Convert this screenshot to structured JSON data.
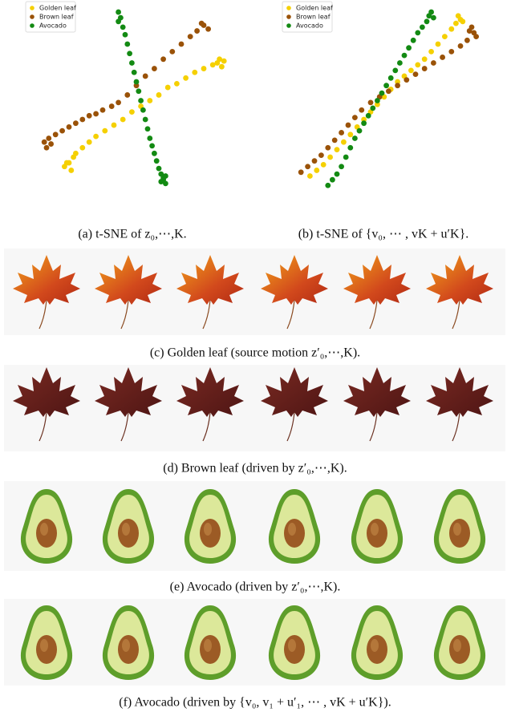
{
  "chart_data": [
    {
      "type": "scatter",
      "xlim": [
        0,
        100
      ],
      "ylim": [
        0,
        100
      ],
      "legend": "upper left",
      "series": [
        {
          "name": "Golden leaf",
          "color": "#f5d000",
          "x": [
            18,
            20,
            22,
            21,
            19,
            23,
            26,
            29,
            32,
            36,
            40,
            44,
            48,
            52,
            56,
            60,
            64,
            68,
            72,
            76,
            80,
            84,
            87,
            89,
            88,
            86
          ],
          "y": [
            15,
            17,
            20,
            13,
            17,
            22,
            25,
            28,
            31,
            34,
            37,
            40,
            44,
            47,
            50,
            53,
            57,
            59,
            62,
            65,
            67,
            69,
            72,
            71,
            68,
            70
          ]
        },
        {
          "name": "Brown leaf",
          "color": "#9a5208",
          "x": [
            9,
            11,
            12,
            10,
            14,
            17,
            20,
            23,
            26,
            29,
            32,
            35,
            39,
            42,
            46,
            50,
            54,
            58,
            62,
            66,
            70,
            74,
            77,
            80,
            82,
            79
          ],
          "y": [
            28,
            30,
            27,
            25,
            32,
            34,
            36,
            38,
            40,
            42,
            43,
            45,
            47,
            49,
            53,
            58,
            63,
            67,
            72,
            76,
            80,
            84,
            87,
            90,
            88,
            91
          ]
        },
        {
          "name": "Avocado",
          "color": "#138a13",
          "x": [
            42,
            43,
            42,
            44,
            45,
            46,
            47,
            48,
            49,
            50,
            51,
            52,
            53,
            54,
            55,
            56,
            57,
            58,
            59,
            60,
            61,
            62,
            63,
            62,
            61,
            63
          ],
          "y": [
            97,
            94,
            92,
            89,
            85,
            80,
            75,
            70,
            65,
            60,
            55,
            50,
            45,
            40,
            35,
            30,
            26,
            22,
            18,
            14,
            11,
            8,
            6,
            9,
            7,
            10
          ]
        }
      ]
    },
    {
      "type": "scatter",
      "xlim": [
        0,
        100
      ],
      "ylim": [
        0,
        100
      ],
      "legend": "upper left",
      "series": [
        {
          "name": "Golden leaf",
          "color": "#f5d000",
          "x": [
            13,
            16,
            19,
            22,
            25,
            28,
            31,
            34,
            37,
            40,
            43,
            46,
            49,
            52,
            55,
            58,
            61,
            64,
            67,
            70,
            73,
            76,
            78,
            80,
            79,
            81
          ],
          "y": [
            10,
            13,
            16,
            20,
            24,
            28,
            32,
            36,
            40,
            44,
            48,
            52,
            56,
            60,
            63,
            66,
            69,
            72,
            76,
            80,
            84,
            88,
            91,
            93,
            95,
            92
          ]
        },
        {
          "name": "Brown leaf",
          "color": "#9a5208",
          "x": [
            9,
            12,
            15,
            18,
            21,
            24,
            27,
            30,
            33,
            36,
            40,
            44,
            48,
            52,
            56,
            60,
            64,
            68,
            72,
            76,
            80,
            83,
            86,
            85,
            84,
            87
          ],
          "y": [
            12,
            15,
            18,
            21,
            25,
            29,
            33,
            37,
            41,
            45,
            49,
            52,
            55,
            58,
            61,
            64,
            67,
            70,
            73,
            76,
            79,
            82,
            86,
            89,
            87,
            84
          ]
        },
        {
          "name": "Avocado",
          "color": "#138a13",
          "x": [
            21,
            23,
            25,
            27,
            29,
            31,
            33,
            35,
            37,
            39,
            41,
            43,
            45,
            47,
            49,
            51,
            53,
            55,
            57,
            59,
            61,
            63,
            65,
            66,
            67,
            68
          ],
          "y": [
            5,
            8,
            11,
            15,
            20,
            25,
            30,
            34,
            38,
            42,
            46,
            50,
            54,
            58,
            62,
            66,
            70,
            74,
            78,
            82,
            86,
            89,
            92,
            95,
            97,
            94
          ]
        }
      ]
    }
  ],
  "captions": [
    "(a) t-SNE of z₀,⋯,K.",
    "(b) t-SNE of {v₀, ⋯ , vK + u′K}.",
    "(c) Golden leaf (source motion z′₀,⋯,K).",
    "(d) Brown leaf (driven by z′₀,⋯,K).",
    "(e) Avocado (driven by z′₀,⋯,K).",
    "(f) Avocado (driven by {v₀, v₁ + u′₁, ⋯ , vK + u′K})."
  ]
}
